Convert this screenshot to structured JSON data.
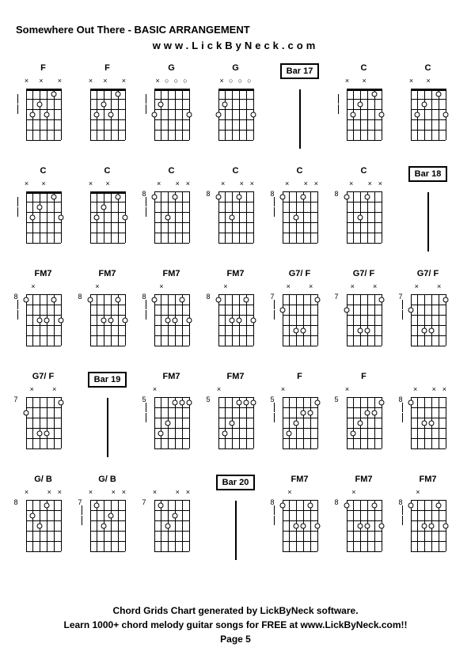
{
  "title": "Somewhere Out There - BASIC ARRANGEMENT",
  "subtitle": "www.LickByNeck.com",
  "footer_line1": "Chord Grids Chart generated by LickByNeck software.",
  "footer_line2": "Learn 1000+ chord melody guitar songs for FREE at www.LickByNeck.com!!",
  "page": "Page 5",
  "diagram_style": {
    "strings": 6,
    "frets": 5,
    "string_color": "#000000",
    "fret_color": "#000000",
    "dot_border": "#000000",
    "dot_fill": "#ffffff",
    "background": "#ffffff"
  },
  "cells": [
    {
      "type": "chord",
      "label": "F",
      "fret": "",
      "markers": [
        "x",
        "",
        "x",
        "",
        "",
        "x"
      ],
      "dots": [
        {
          "s": 1,
          "f": 1
        },
        {
          "s": 3,
          "f": 2
        },
        {
          "s": 2,
          "f": 3
        },
        {
          "s": 4,
          "f": 3
        }
      ],
      "ticks": [
        1,
        2
      ]
    },
    {
      "type": "chord",
      "label": "F",
      "fret": "",
      "markers": [
        "x",
        "",
        "x",
        "",
        "",
        "x"
      ],
      "dots": [
        {
          "s": 1,
          "f": 1
        },
        {
          "s": 3,
          "f": 2
        },
        {
          "s": 2,
          "f": 3
        },
        {
          "s": 4,
          "f": 3
        }
      ]
    },
    {
      "type": "chord",
      "label": "G",
      "fret": "",
      "markers": [
        "",
        "x",
        "o",
        "o",
        "o",
        ""
      ],
      "dots": [
        {
          "s": 4,
          "f": 2
        },
        {
          "s": 5,
          "f": 3
        },
        {
          "s": 0,
          "f": 3
        }
      ],
      "ticks": [
        1,
        2
      ]
    },
    {
      "type": "chord",
      "label": "G",
      "fret": "",
      "markers": [
        "",
        "x",
        "o",
        "o",
        "o",
        ""
      ],
      "dots": [
        {
          "s": 4,
          "f": 2
        },
        {
          "s": 5,
          "f": 3
        },
        {
          "s": 0,
          "f": 3
        }
      ]
    },
    {
      "type": "bar",
      "label": "Bar 17"
    },
    {
      "type": "chord",
      "label": "C",
      "fret": "",
      "markers": [
        "x",
        "",
        "x",
        "",
        "",
        ""
      ],
      "dots": [
        {
          "s": 1,
          "f": 1
        },
        {
          "s": 3,
          "f": 2
        },
        {
          "s": 4,
          "f": 3
        },
        {
          "s": 0,
          "f": 3
        }
      ],
      "ticks": [
        1,
        2
      ]
    },
    {
      "type": "chord",
      "label": "C",
      "fret": "",
      "markers": [
        "x",
        "",
        "x",
        "",
        "",
        ""
      ],
      "dots": [
        {
          "s": 1,
          "f": 1
        },
        {
          "s": 3,
          "f": 2
        },
        {
          "s": 4,
          "f": 3
        },
        {
          "s": 0,
          "f": 3
        }
      ]
    },
    {
      "type": "chord",
      "label": "C",
      "fret": "",
      "markers": [
        "x",
        "",
        "x",
        "",
        "",
        ""
      ],
      "dots": [
        {
          "s": 1,
          "f": 1
        },
        {
          "s": 3,
          "f": 2
        },
        {
          "s": 4,
          "f": 3
        },
        {
          "s": 0,
          "f": 3
        }
      ],
      "ticks": [
        1,
        2
      ]
    },
    {
      "type": "chord",
      "label": "C",
      "fret": "",
      "markers": [
        "x",
        "",
        "x",
        "",
        "",
        ""
      ],
      "dots": [
        {
          "s": 1,
          "f": 1
        },
        {
          "s": 3,
          "f": 2
        },
        {
          "s": 4,
          "f": 3
        },
        {
          "s": 0,
          "f": 3
        }
      ]
    },
    {
      "type": "chord",
      "label": "C",
      "fret": "8",
      "markers": [
        "",
        "x",
        "",
        "",
        "x",
        "x"
      ],
      "dots": [
        {
          "s": 5,
          "f": 1
        },
        {
          "s": 2,
          "f": 1
        },
        {
          "s": 3,
          "f": 3
        }
      ],
      "ticks": [
        1,
        2
      ]
    },
    {
      "type": "chord",
      "label": "C",
      "fret": "8",
      "markers": [
        "",
        "x",
        "",
        "",
        "x",
        "x"
      ],
      "dots": [
        {
          "s": 5,
          "f": 1
        },
        {
          "s": 2,
          "f": 1
        },
        {
          "s": 3,
          "f": 3
        }
      ]
    },
    {
      "type": "chord",
      "label": "C",
      "fret": "8",
      "markers": [
        "",
        "x",
        "",
        "",
        "x",
        "x"
      ],
      "dots": [
        {
          "s": 5,
          "f": 1
        },
        {
          "s": 2,
          "f": 1
        },
        {
          "s": 3,
          "f": 3
        }
      ],
      "ticks": [
        1,
        2
      ]
    },
    {
      "type": "chord",
      "label": "C",
      "fret": "8",
      "markers": [
        "",
        "x",
        "",
        "",
        "x",
        "x"
      ],
      "dots": [
        {
          "s": 5,
          "f": 1
        },
        {
          "s": 2,
          "f": 1
        },
        {
          "s": 3,
          "f": 3
        }
      ]
    },
    {
      "type": "bar",
      "label": "Bar 18"
    },
    {
      "type": "chord",
      "label": "FM7",
      "fret": "8",
      "markers": [
        "",
        "x",
        "",
        "",
        "",
        ""
      ],
      "dots": [
        {
          "s": 5,
          "f": 1
        },
        {
          "s": 1,
          "f": 1
        },
        {
          "s": 2,
          "f": 3
        },
        {
          "s": 3,
          "f": 3
        },
        {
          "s": 0,
          "f": 3
        }
      ],
      "ticks": [
        1,
        2
      ]
    },
    {
      "type": "chord",
      "label": "FM7",
      "fret": "8",
      "markers": [
        "",
        "x",
        "",
        "",
        "",
        ""
      ],
      "dots": [
        {
          "s": 5,
          "f": 1
        },
        {
          "s": 1,
          "f": 1
        },
        {
          "s": 2,
          "f": 3
        },
        {
          "s": 3,
          "f": 3
        },
        {
          "s": 0,
          "f": 3
        }
      ]
    },
    {
      "type": "chord",
      "label": "FM7",
      "fret": "8",
      "markers": [
        "",
        "x",
        "",
        "",
        "",
        ""
      ],
      "dots": [
        {
          "s": 5,
          "f": 1
        },
        {
          "s": 1,
          "f": 1
        },
        {
          "s": 2,
          "f": 3
        },
        {
          "s": 3,
          "f": 3
        },
        {
          "s": 0,
          "f": 3
        }
      ],
      "ticks": [
        1,
        2
      ]
    },
    {
      "type": "chord",
      "label": "FM7",
      "fret": "8",
      "markers": [
        "",
        "x",
        "",
        "",
        "",
        ""
      ],
      "dots": [
        {
          "s": 5,
          "f": 1
        },
        {
          "s": 1,
          "f": 1
        },
        {
          "s": 2,
          "f": 3
        },
        {
          "s": 3,
          "f": 3
        },
        {
          "s": 0,
          "f": 3
        }
      ]
    },
    {
      "type": "chord",
      "label": "G7/ F",
      "fret": "7",
      "markers": [
        "",
        "x",
        "",
        "",
        "x",
        ""
      ],
      "dots": [
        {
          "s": 5,
          "f": 2
        },
        {
          "s": 0,
          "f": 1
        },
        {
          "s": 2,
          "f": 4
        },
        {
          "s": 3,
          "f": 4
        }
      ],
      "ticks": [
        1,
        2
      ]
    },
    {
      "type": "chord",
      "label": "G7/ F",
      "fret": "7",
      "markers": [
        "",
        "x",
        "",
        "",
        "x",
        ""
      ],
      "dots": [
        {
          "s": 5,
          "f": 2
        },
        {
          "s": 0,
          "f": 1
        },
        {
          "s": 2,
          "f": 4
        },
        {
          "s": 3,
          "f": 4
        }
      ]
    },
    {
      "type": "chord",
      "label": "G7/ F",
      "fret": "7",
      "markers": [
        "",
        "x",
        "",
        "",
        "x",
        ""
      ],
      "dots": [
        {
          "s": 5,
          "f": 2
        },
        {
          "s": 0,
          "f": 1
        },
        {
          "s": 2,
          "f": 4
        },
        {
          "s": 3,
          "f": 4
        }
      ],
      "ticks": [
        1,
        2
      ]
    },
    {
      "type": "chord",
      "label": "G7/ F",
      "fret": "7",
      "markers": [
        "",
        "x",
        "",
        "",
        "x",
        ""
      ],
      "dots": [
        {
          "s": 5,
          "f": 2
        },
        {
          "s": 0,
          "f": 1
        },
        {
          "s": 2,
          "f": 4
        },
        {
          "s": 3,
          "f": 4
        }
      ]
    },
    {
      "type": "bar",
      "label": "Bar 19"
    },
    {
      "type": "chord",
      "label": "FM7",
      "fret": "5",
      "markers": [
        "x",
        "",
        "",
        "",
        "",
        ""
      ],
      "dots": [
        {
          "s": 4,
          "f": 4
        },
        {
          "s": 3,
          "f": 3
        },
        {
          "s": 2,
          "f": 1
        },
        {
          "s": 1,
          "f": 1
        },
        {
          "s": 0,
          "f": 1
        }
      ],
      "ticks": [
        1,
        2
      ]
    },
    {
      "type": "chord",
      "label": "FM7",
      "fret": "5",
      "markers": [
        "x",
        "",
        "",
        "",
        "",
        ""
      ],
      "dots": [
        {
          "s": 4,
          "f": 4
        },
        {
          "s": 3,
          "f": 3
        },
        {
          "s": 2,
          "f": 1
        },
        {
          "s": 1,
          "f": 1
        },
        {
          "s": 0,
          "f": 1
        }
      ]
    },
    {
      "type": "chord",
      "label": "F",
      "fret": "5",
      "markers": [
        "x",
        "",
        "",
        "",
        "",
        ""
      ],
      "dots": [
        {
          "s": 4,
          "f": 4
        },
        {
          "s": 3,
          "f": 3
        },
        {
          "s": 2,
          "f": 2
        },
        {
          "s": 1,
          "f": 2
        },
        {
          "s": 0,
          "f": 1
        }
      ],
      "ticks": [
        1,
        2
      ]
    },
    {
      "type": "chord",
      "label": "F",
      "fret": "5",
      "markers": [
        "x",
        "",
        "",
        "",
        "",
        ""
      ],
      "dots": [
        {
          "s": 4,
          "f": 4
        },
        {
          "s": 3,
          "f": 3
        },
        {
          "s": 2,
          "f": 2
        },
        {
          "s": 1,
          "f": 2
        },
        {
          "s": 0,
          "f": 1
        }
      ]
    },
    {
      "type": "chord",
      "label": "",
      "fret": "8",
      "markers": [
        "",
        "x",
        "",
        "",
        "x",
        "x"
      ],
      "dots": [
        {
          "s": 5,
          "f": 1
        },
        {
          "s": 2,
          "f": 3
        },
        {
          "s": 3,
          "f": 3
        }
      ],
      "ticks": [
        1,
        2
      ]
    },
    {
      "type": "chord",
      "label": "G/ B",
      "fret": "8",
      "markers": [
        "x",
        "",
        "",
        "",
        "x",
        "x"
      ],
      "dots": [
        {
          "s": 4,
          "f": 2
        },
        {
          "s": 3,
          "f": 3
        },
        {
          "s": 2,
          "f": 1
        }
      ]
    },
    {
      "type": "chord",
      "label": "G/ B",
      "fret": "7",
      "markers": [
        "x",
        "",
        "",
        "",
        "x",
        "x"
      ],
      "dots": [
        {
          "s": 4,
          "f": 1
        },
        {
          "s": 3,
          "f": 3
        },
        {
          "s": 2,
          "f": 2
        }
      ],
      "ticks": [
        1,
        2
      ]
    },
    {
      "type": "chord",
      "label": "",
      "fret": "7",
      "markers": [
        "x",
        "",
        "",
        "",
        "x",
        "x"
      ],
      "dots": [
        {
          "s": 4,
          "f": 1
        },
        {
          "s": 3,
          "f": 3
        },
        {
          "s": 2,
          "f": 2
        }
      ]
    },
    {
      "type": "bar",
      "label": "Bar 20"
    },
    {
      "type": "chord",
      "label": "FM7",
      "fret": "8",
      "markers": [
        "",
        "x",
        "",
        "",
        "",
        ""
      ],
      "dots": [
        {
          "s": 5,
          "f": 1
        },
        {
          "s": 1,
          "f": 1
        },
        {
          "s": 2,
          "f": 3
        },
        {
          "s": 3,
          "f": 3
        },
        {
          "s": 0,
          "f": 3
        }
      ],
      "ticks": [
        1,
        2
      ]
    },
    {
      "type": "chord",
      "label": "FM7",
      "fret": "8",
      "markers": [
        "",
        "x",
        "",
        "",
        "",
        ""
      ],
      "dots": [
        {
          "s": 5,
          "f": 1
        },
        {
          "s": 1,
          "f": 1
        },
        {
          "s": 2,
          "f": 3
        },
        {
          "s": 3,
          "f": 3
        },
        {
          "s": 0,
          "f": 3
        }
      ]
    },
    {
      "type": "chord",
      "label": "FM7",
      "fret": "8",
      "markers": [
        "",
        "x",
        "",
        "",
        "",
        ""
      ],
      "dots": [
        {
          "s": 5,
          "f": 1
        },
        {
          "s": 1,
          "f": 1
        },
        {
          "s": 2,
          "f": 3
        },
        {
          "s": 3,
          "f": 3
        },
        {
          "s": 0,
          "f": 3
        }
      ],
      "ticks": [
        1,
        2
      ]
    }
  ]
}
